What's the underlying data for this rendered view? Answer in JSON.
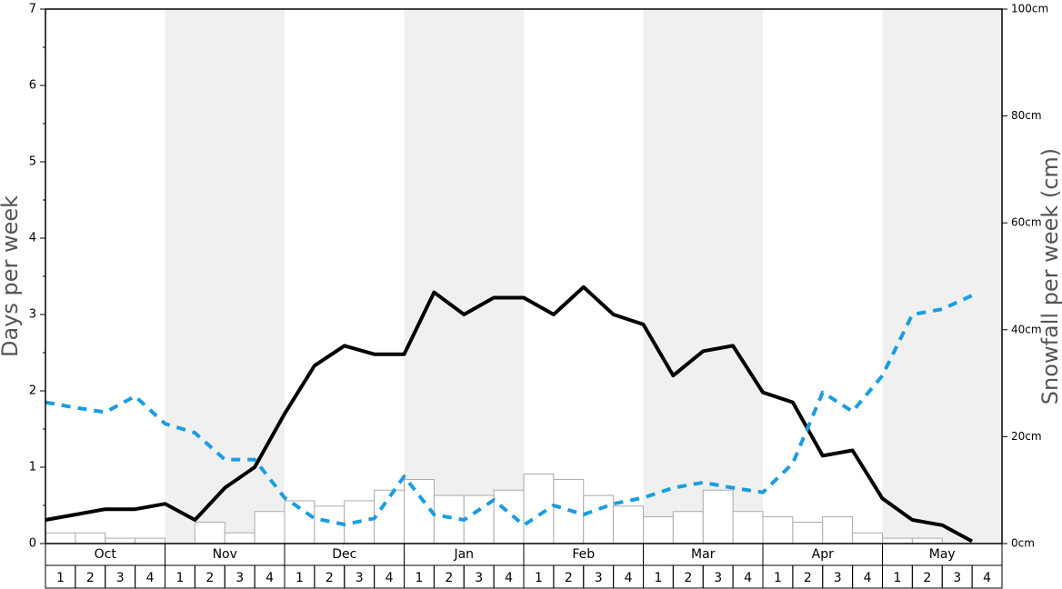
{
  "chart_data": {
    "type": "bar-line",
    "ylabel": "Days per week",
    "y2label": "Snowfall per week (cm)",
    "months": [
      "Oct",
      "Nov",
      "Dec",
      "Jan",
      "Feb",
      "Mar",
      "Apr",
      "May"
    ],
    "categories": [
      "1",
      "2",
      "3",
      "4",
      "1",
      "2",
      "3",
      "4",
      "1",
      "2",
      "3",
      "4",
      "1",
      "2",
      "3",
      "4",
      "1",
      "2",
      "3",
      "4",
      "1",
      "2",
      "3",
      "4",
      "1",
      "2",
      "3",
      "4",
      "1",
      "2",
      "3",
      "4"
    ],
    "ylim": [
      0,
      7
    ],
    "yticks": [
      0,
      1,
      2,
      3,
      4,
      5,
      6,
      7
    ],
    "y2lim": [
      0,
      100
    ],
    "y2ticks": [
      {
        "value": 0,
        "label": "0cm"
      },
      {
        "value": 20,
        "label": "20cm"
      },
      {
        "value": 40,
        "label": "40cm"
      },
      {
        "value": 60,
        "label": "60cm"
      },
      {
        "value": 80,
        "label": "80cm"
      },
      {
        "value": 100,
        "label": "100cm"
      }
    ],
    "bars": {
      "axis": "y2",
      "color": "#ffffff",
      "edge": "#aaaaaa",
      "values": [
        2,
        2,
        1,
        1,
        0,
        4,
        2,
        6,
        8,
        7,
        8,
        10,
        12,
        9,
        9,
        10,
        13,
        12,
        9,
        7,
        5,
        6,
        10,
        6,
        5,
        4,
        5,
        2,
        1,
        1,
        0,
        0
      ]
    },
    "series": [
      {
        "color": "#000000",
        "style": "solid",
        "values": [
          0.31,
          0.38,
          0.45,
          0.45,
          0.52,
          0.31,
          0.73,
          1.0,
          1.7,
          2.33,
          2.59,
          2.48,
          2.48,
          3.29,
          3.0,
          3.22,
          3.22,
          3.0,
          3.36,
          3.0,
          2.87,
          2.2,
          2.52,
          2.59,
          1.98,
          1.85,
          1.15,
          1.22,
          0.59,
          0.31,
          0.24,
          0.03
        ]
      },
      {
        "color": "#1a9de0",
        "style": "dashed",
        "values": [
          1.85,
          1.78,
          1.72,
          1.93,
          1.57,
          1.45,
          1.1,
          1.1,
          0.6,
          0.33,
          0.25,
          0.33,
          0.88,
          0.38,
          0.31,
          0.57,
          0.24,
          0.5,
          0.38,
          0.52,
          0.6,
          0.73,
          0.8,
          0.73,
          0.67,
          1.05,
          1.98,
          1.73,
          2.2,
          3.0,
          3.07,
          3.25
        ]
      }
    ]
  }
}
